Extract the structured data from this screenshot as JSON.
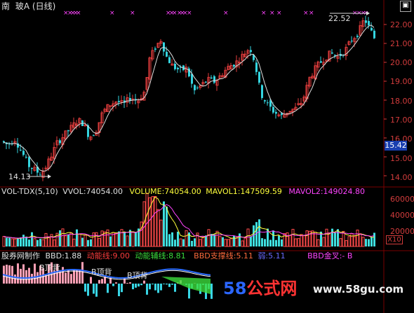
{
  "header": {
    "title_prefix": "南",
    "title_name": "玻A",
    "title_period": "(日线)"
  },
  "price_axis": {
    "labels": [
      "22.00",
      "21.00",
      "20.00",
      "19.00",
      "18.00",
      "17.00",
      "16.00",
      "15.00",
      "14.00"
    ],
    "current_price": "15.42"
  },
  "annotations": {
    "high": "22.52",
    "low": "14.13"
  },
  "volume_panel": {
    "indicator": "VOL-TDX(5,10)",
    "vvol": "VVOL:74054.00",
    "volume": "VOLUME:74054.00",
    "mavol1": "MAVOL1:147509.59",
    "mavol2": "MAVOL2:149024.80",
    "axis_labels": [
      "60000",
      "40000",
      "20000"
    ],
    "scale": "X10"
  },
  "bbd_panel": {
    "name": "股券网制作",
    "bbd": "BBD:1.88",
    "dongneng": "动能线:9.00",
    "fuzhu": "动能辅线:8.81",
    "zhicheng": "BBD支撑线:5.11",
    "ruo": "弱:5.11",
    "jincha": "BBD金叉:- B",
    "label_1": "B顶背",
    "label_2": "B顶背",
    "label_3": "B顶背"
  },
  "watermark": {
    "brand_58": "58",
    "brand_rest": "公式网",
    "url": "www.58gu.com"
  },
  "colors": {
    "up": "#e03c3c",
    "down": "#34d5e0",
    "grid": "#7a0000",
    "axis_text": "#d23c3c",
    "magenta": "#ff44ff",
    "yellow": "#ffff3c",
    "ma_white": "#ffffff"
  },
  "chart_data": {
    "type": "candlestick",
    "ylim": [
      13.5,
      22.8
    ],
    "high_label": 22.52,
    "low_label": 14.13,
    "last": 15.42
  }
}
